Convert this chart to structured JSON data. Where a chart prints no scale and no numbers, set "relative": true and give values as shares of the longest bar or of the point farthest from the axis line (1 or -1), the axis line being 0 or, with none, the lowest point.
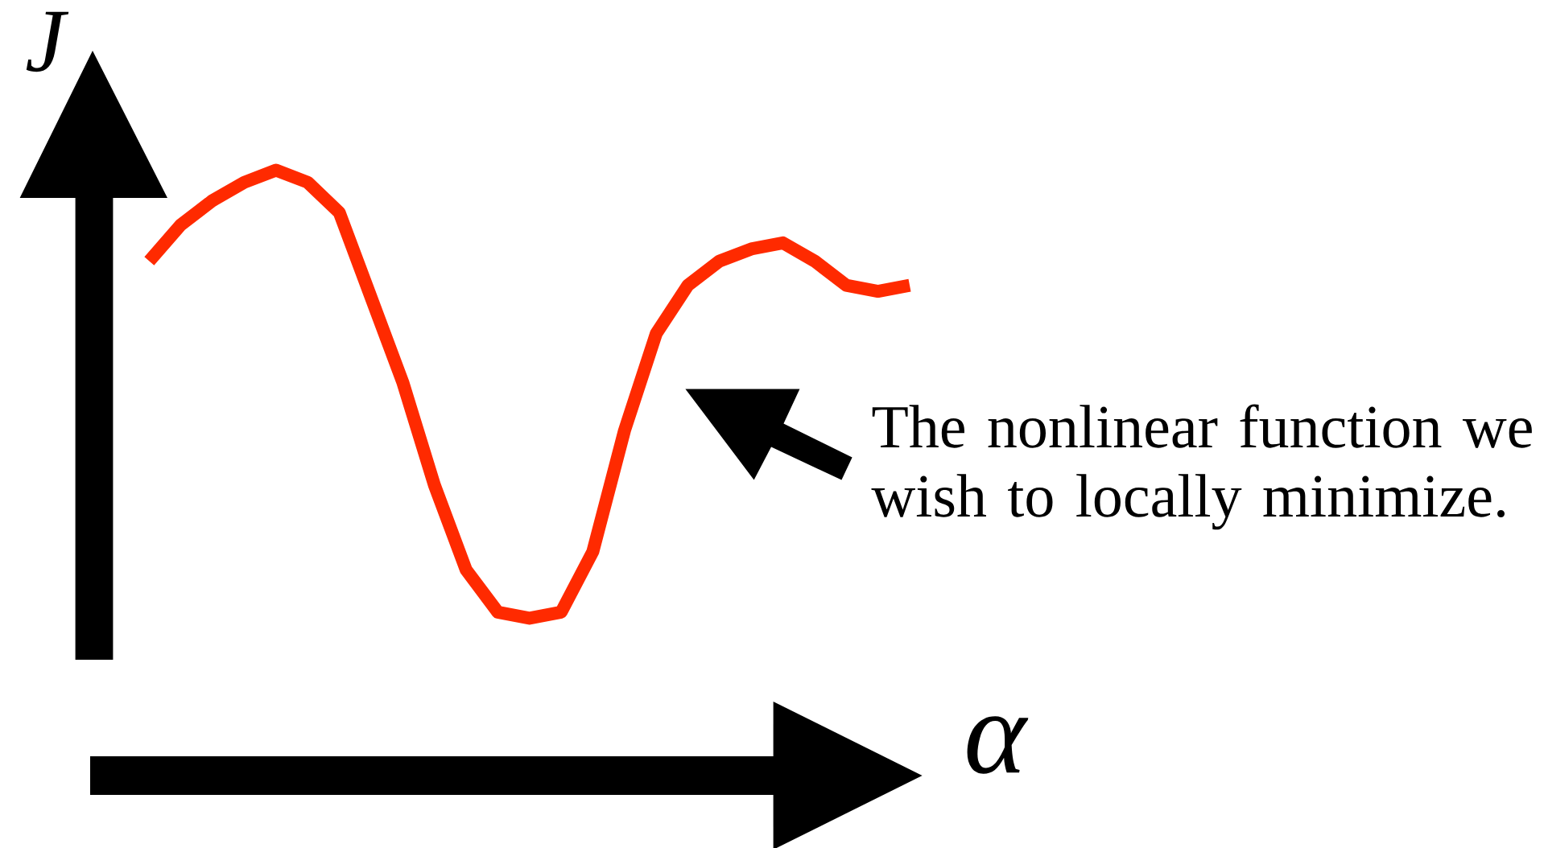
{
  "chart_data": {
    "type": "line",
    "xlabel": "α",
    "ylabel": "J",
    "relative": true,
    "color": "#ff2a00",
    "annotations": [
      "The nonlinear function we wish to locally minimize."
    ],
    "categories": [
      null,
      null,
      null,
      null,
      null,
      null,
      null,
      null,
      null,
      null,
      null,
      null,
      null,
      null,
      null,
      null,
      null,
      null,
      null,
      null,
      null,
      null,
      null,
      null,
      null
    ],
    "values": [
      0.85,
      0.91,
      0.95,
      0.98,
      1,
      0.98,
      0.93,
      0.79,
      0.65,
      0.48,
      0.34,
      0.27,
      0.26,
      0.27,
      0.37,
      0.57,
      0.73,
      0.81,
      0.85,
      0.87,
      0.88,
      0.85,
      0.81,
      0.8,
      0.81
    ]
  }
}
